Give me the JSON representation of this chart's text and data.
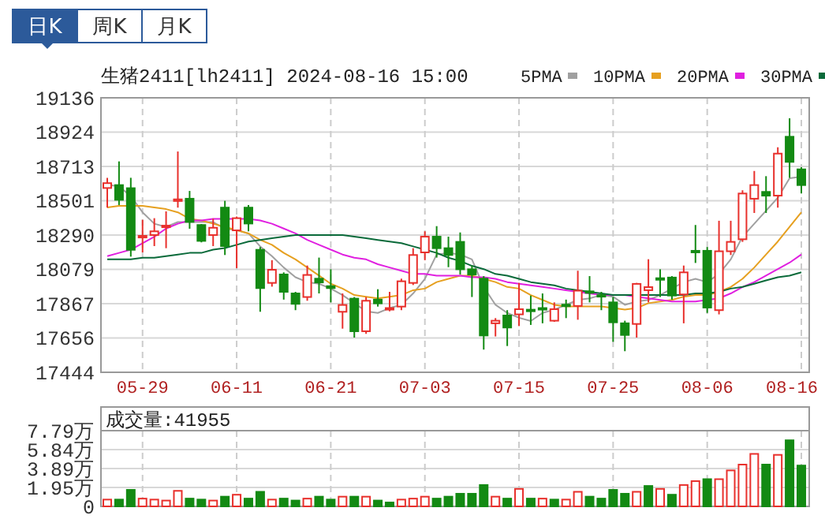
{
  "chart_data": [
    {
      "type": "candlestick",
      "title": "生猪2411[lh2411] 2024-08-16 15:00",
      "annotations": [
        "日K",
        "周K",
        "月K"
      ],
      "categories": [
        null,
        null,
        null,
        "05-29",
        null,
        null,
        null,
        null,
        null,
        null,
        null,
        "06-11",
        null,
        null,
        null,
        null,
        null,
        null,
        null,
        "06-21",
        null,
        null,
        null,
        null,
        null,
        null,
        null,
        "07-03",
        null,
        null,
        null,
        null,
        null,
        null,
        null,
        "07-15",
        null,
        null,
        null,
        null,
        null,
        null,
        null,
        "07-25",
        null,
        null,
        null,
        null,
        null,
        null,
        null,
        "08-06",
        null,
        null,
        null,
        null,
        null,
        null,
        null,
        "08-16"
      ],
      "ohlc": [
        [
          18580,
          18643,
          18459,
          18610
        ],
        [
          18598,
          18744,
          18475,
          18507
        ],
        [
          18579,
          18643,
          18157,
          18199
        ],
        [
          18275,
          18384,
          18183,
          18285
        ],
        [
          18290,
          18394,
          18222,
          18313
        ],
        [
          18340,
          18436,
          18209,
          18348
        ],
        [
          18500,
          18805,
          18459,
          18510
        ],
        [
          18514,
          18562,
          18329,
          18371
        ],
        [
          18352,
          18358,
          18245,
          18254
        ],
        [
          18290,
          18391,
          18222,
          18335
        ],
        [
          18459,
          18501,
          18167,
          18222
        ],
        [
          18319,
          18404,
          18086,
          18394
        ],
        [
          18459,
          18475,
          18313,
          18361
        ],
        [
          18199,
          18216,
          17817,
          17963
        ],
        [
          17995,
          18135,
          17972,
          18076
        ],
        [
          18047,
          18060,
          17892,
          17940
        ],
        [
          17930,
          17940,
          17827,
          17866
        ],
        [
          17908,
          18102,
          17885,
          18044
        ],
        [
          18021,
          18151,
          17930,
          17998
        ],
        [
          17975,
          18079,
          17875,
          17963
        ],
        [
          17817,
          17930,
          17713,
          17859
        ],
        [
          17898,
          17908,
          17658,
          17697
        ],
        [
          17697,
          17908,
          17681,
          17885
        ],
        [
          17892,
          17956,
          17849,
          17869
        ],
        [
          17834,
          17940,
          17820,
          17840
        ],
        [
          17849,
          18021,
          17827,
          18005
        ],
        [
          17995,
          18209,
          17982,
          18167
        ],
        [
          18183,
          18313,
          18135,
          18280
        ],
        [
          18280,
          18345,
          18151,
          18209
        ],
        [
          18209,
          18280,
          18092,
          18167
        ],
        [
          18248,
          18306,
          18047,
          18079
        ],
        [
          18079,
          18102,
          17908,
          18047
        ],
        [
          18021,
          18037,
          17584,
          17671
        ],
        [
          17746,
          17778,
          17665,
          17762
        ],
        [
          17794,
          17827,
          17606,
          17720
        ],
        [
          17801,
          17995,
          17729,
          17833
        ],
        [
          17830,
          17917,
          17736,
          17826
        ],
        [
          17840,
          17930,
          17746,
          17836
        ],
        [
          17762,
          17875,
          17755,
          17833
        ],
        [
          17861,
          17892,
          17778,
          17856
        ],
        [
          17853,
          18070,
          17768,
          17947
        ],
        [
          17943,
          18037,
          17875,
          17937
        ],
        [
          17920,
          17940,
          17827,
          17914
        ],
        [
          17875,
          17908,
          17632,
          17752
        ],
        [
          17746,
          17762,
          17574,
          17674
        ],
        [
          17742,
          17995,
          17658,
          17989
        ],
        [
          17950,
          18141,
          17875,
          17969
        ],
        [
          18024,
          18079,
          17908,
          18018
        ],
        [
          18028,
          18037,
          17892,
          17917
        ],
        [
          17924,
          18102,
          17746,
          18060
        ],
        [
          18193,
          18352,
          18118,
          18190
        ],
        [
          18193,
          18216,
          17810,
          17843
        ],
        [
          17827,
          18378,
          17801,
          18190
        ],
        [
          18190,
          18378,
          18167,
          18248
        ],
        [
          18264,
          18566,
          18248,
          18546
        ],
        [
          18514,
          18685,
          18426,
          18598
        ],
        [
          18556,
          18653,
          18426,
          18533
        ],
        [
          18533,
          18831,
          18459,
          18792
        ],
        [
          18896,
          19010,
          18643,
          18741
        ],
        [
          18695,
          18708,
          18546,
          18598
        ]
      ],
      "colors": [
        "#e8302c",
        "#138a13",
        "#138a13",
        "#e8302c",
        "#e8302c",
        "#e8302c",
        "#e8302c",
        "#138a13",
        "#138a13",
        "#e8302c",
        "#138a13",
        "#e8302c",
        "#138a13",
        "#138a13",
        "#e8302c",
        "#138a13",
        "#138a13",
        "#e8302c",
        "#138a13",
        "#138a13",
        "#e8302c",
        "#138a13",
        "#e8302c",
        "#138a13",
        "#e8302c",
        "#e8302c",
        "#e8302c",
        "#e8302c",
        "#138a13",
        "#138a13",
        "#138a13",
        "#138a13",
        "#138a13",
        "#e8302c",
        "#138a13",
        "#e8302c",
        "#138a13",
        "#138a13",
        "#e8302c",
        "#138a13",
        "#e8302c",
        "#138a13",
        "#138a13",
        "#138a13",
        "#138a13",
        "#e8302c",
        "#e8302c",
        "#138a13",
        "#138a13",
        "#e8302c",
        "#138a13",
        "#138a13",
        "#e8302c",
        "#e8302c",
        "#e8302c",
        "#e8302c",
        "#138a13",
        "#e8302c",
        "#138a13",
        "#138a13"
      ],
      "series": [
        {
          "type": "line",
          "name": "5PMA",
          "color": "#a0a0a0",
          "values": [
            18600,
            18590,
            18530,
            18430,
            18360,
            18340,
            18370,
            18370,
            18370,
            18370,
            18330,
            18320,
            18300,
            18220,
            18160,
            18090,
            18030,
            18000,
            17990,
            17960,
            17920,
            17870,
            17820,
            17810,
            17840,
            17860,
            17930,
            18020,
            18170,
            18180,
            18170,
            18140,
            17970,
            17860,
            17810,
            17780,
            17760,
            17810,
            17830,
            17860,
            17890,
            17900,
            17920,
            17910,
            17860,
            17880,
            17890,
            17920,
            17960,
            18000,
            18020,
            18000,
            18050,
            18140,
            18280,
            18360,
            18440,
            18520,
            18640,
            18650
          ]
        },
        {
          "type": "line",
          "name": "10PMA",
          "color": "#e6a020",
          "values": [
            18460,
            18470,
            18470,
            18470,
            18460,
            18450,
            18430,
            18390,
            18380,
            18360,
            18340,
            18320,
            18300,
            18260,
            18230,
            18180,
            18140,
            18090,
            18040,
            17990,
            17960,
            17920,
            17910,
            17900,
            17910,
            17920,
            17950,
            17960,
            18000,
            18020,
            18040,
            18040,
            18020,
            18000,
            17970,
            17960,
            17920,
            17890,
            17860,
            17850,
            17850,
            17850,
            17850,
            17840,
            17830,
            17840,
            17870,
            17880,
            17890,
            17910,
            17920,
            17920,
            17940,
            17970,
            18020,
            18090,
            18170,
            18250,
            18340,
            18430
          ]
        },
        {
          "type": "line",
          "name": "20PMA",
          "color": "#e020e0",
          "values": [
            18160,
            18180,
            18200,
            18240,
            18280,
            18330,
            18360,
            18380,
            18380,
            18390,
            18390,
            18390,
            18390,
            18380,
            18360,
            18330,
            18300,
            18260,
            18230,
            18200,
            18170,
            18150,
            18140,
            18110,
            18090,
            18070,
            18050,
            18050,
            18040,
            18040,
            18040,
            18030,
            18030,
            18020,
            18000,
            17990,
            17980,
            17970,
            17960,
            17950,
            17940,
            17930,
            17920,
            17920,
            17920,
            17910,
            17900,
            17890,
            17880,
            17880,
            17880,
            17890,
            17900,
            17930,
            17970,
            18000,
            18040,
            18080,
            18120,
            18170
          ]
        },
        {
          "type": "line",
          "name": "30PMA",
          "color": "#0a6a3a",
          "values": [
            18140,
            18140,
            18140,
            18150,
            18150,
            18160,
            18170,
            18180,
            18180,
            18200,
            18210,
            18230,
            18250,
            18260,
            18270,
            18280,
            18290,
            18290,
            18290,
            18290,
            18290,
            18280,
            18270,
            18260,
            18250,
            18240,
            18220,
            18200,
            18180,
            18150,
            18130,
            18100,
            18080,
            18050,
            18040,
            18020,
            18000,
            17990,
            17980,
            17960,
            17950,
            17940,
            17930,
            17920,
            17920,
            17920,
            17920,
            17920,
            17920,
            17920,
            17930,
            17930,
            17940,
            17960,
            17970,
            17990,
            18010,
            18030,
            18040,
            18060
          ]
        }
      ],
      "ylim": [
        17444,
        19136
      ],
      "yticks": [
        17444,
        17656,
        17867,
        18079,
        18290,
        18501,
        18713,
        18924,
        19136
      ],
      "grid": true,
      "legend": "top right"
    },
    {
      "type": "bar",
      "title": "成交量:41955",
      "categories": [
        null,
        null,
        null,
        null,
        null,
        null,
        null,
        null,
        null,
        null,
        null,
        null,
        null,
        null,
        null,
        null,
        null,
        null,
        null,
        null,
        null,
        null,
        null,
        null,
        null,
        null,
        null,
        null,
        null,
        null,
        null,
        null,
        null,
        null,
        null,
        null,
        null,
        null,
        null,
        null,
        null,
        null,
        null,
        null,
        null,
        null,
        null,
        null,
        null,
        null,
        null,
        null,
        null,
        null,
        null,
        null,
        null,
        null,
        null,
        null
      ],
      "values": [
        0.7,
        0.7,
        1.7,
        0.8,
        0.7,
        0.6,
        1.6,
        0.8,
        0.7,
        0.6,
        1.0,
        1.2,
        0.8,
        1.5,
        0.7,
        0.8,
        0.6,
        0.8,
        1.0,
        0.7,
        1.0,
        1.0,
        1.0,
        0.6,
        0.4,
        0.7,
        0.8,
        1.0,
        0.8,
        1.0,
        1.3,
        1.3,
        2.2,
        1.0,
        0.8,
        1.8,
        0.8,
        0.8,
        0.7,
        0.7,
        1.5,
        1.0,
        0.8,
        1.7,
        1.3,
        1.5,
        2.1,
        1.8,
        1.2,
        2.2,
        2.6,
        2.8,
        2.8,
        3.7,
        4.3,
        5.4,
        4.3,
        5.3,
        6.8,
        4.2
      ],
      "colors": [
        "#e8302c",
        "#138a13",
        "#138a13",
        "#e8302c",
        "#e8302c",
        "#e8302c",
        "#e8302c",
        "#138a13",
        "#138a13",
        "#e8302c",
        "#138a13",
        "#e8302c",
        "#138a13",
        "#138a13",
        "#e8302c",
        "#138a13",
        "#138a13",
        "#e8302c",
        "#138a13",
        "#138a13",
        "#e8302c",
        "#138a13",
        "#e8302c",
        "#138a13",
        "#138a13",
        "#e8302c",
        "#e8302c",
        "#e8302c",
        "#138a13",
        "#138a13",
        "#138a13",
        "#138a13",
        "#138a13",
        "#e8302c",
        "#138a13",
        "#e8302c",
        "#138a13",
        "#e8302c",
        "#138a13",
        "#e8302c",
        "#e8302c",
        "#138a13",
        "#138a13",
        "#138a13",
        "#138a13",
        "#e8302c",
        "#138a13",
        "#e8302c",
        "#138a13",
        "#e8302c",
        "#e8302c",
        "#138a13",
        "#e8302c",
        "#e8302c",
        "#e8302c",
        "#e8302c",
        "#138a13",
        "#e8302c",
        "#138a13",
        "#138a13"
      ],
      "ylim": [
        0,
        7.79
      ],
      "yticks": [
        0,
        {
          "value": 1.95,
          "label": "1.95万"
        },
        {
          "value": 3.89,
          "label": "3.89万"
        },
        {
          "value": 5.84,
          "label": "5.84万"
        },
        {
          "value": 7.79,
          "label": "7.79万"
        }
      ],
      "grid": true,
      "tick_labels": "y"
    }
  ]
}
